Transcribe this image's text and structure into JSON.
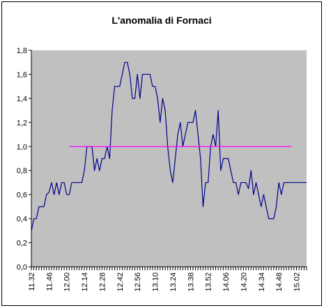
{
  "chart_data": {
    "type": "line",
    "title": "L'anomalia di Fornaci",
    "xlabel": "",
    "ylabel": "",
    "ylim": [
      0,
      1.8
    ],
    "y_ticks": [
      "0,0",
      "0,2",
      "0,4",
      "0,6",
      "0,8",
      "1,0",
      "1,2",
      "1,4",
      "1,6",
      "1,8"
    ],
    "x_tick_labels": [
      "11.32",
      "11.46",
      "12.00",
      "12.14",
      "12.28",
      "12.42",
      "12.56",
      "13.10",
      "13.24",
      "13.38",
      "13.52",
      "14.06",
      "14.20",
      "14.34",
      "14.48",
      "15.02"
    ],
    "x_min_minutes": 692,
    "x_max_minutes": 910,
    "grid": false,
    "plot_background": "#C0C0C0",
    "series": [
      {
        "color": "#00008B",
        "x": [
          "11.32",
          "11.34",
          "11.36",
          "11.38",
          "11.40",
          "11.42",
          "11.44",
          "11.46",
          "11.48",
          "11.50",
          "11.52",
          "11.54",
          "11.56",
          "11.58",
          "12.00",
          "12.02",
          "12.04",
          "12.06",
          "12.08",
          "12.10",
          "12.12",
          "12.14",
          "12.16",
          "12.18",
          "12.20",
          "12.22",
          "12.24",
          "12.26",
          "12.28",
          "12.30",
          "12.32",
          "12.34",
          "12.36",
          "12.38",
          "12.40",
          "12.42",
          "12.44",
          "12.46",
          "12.48",
          "12.50",
          "12.52",
          "12.54",
          "12.56",
          "12.58",
          "13.00",
          "13.02",
          "13.04",
          "13.06",
          "13.08",
          "13.10",
          "13.12",
          "13.14",
          "13.16",
          "13.18",
          "13.20",
          "13.22",
          "13.24",
          "13.26",
          "13.28",
          "13.30",
          "13.32",
          "13.34",
          "13.36",
          "13.38",
          "13.40",
          "13.42",
          "13.44",
          "13.46",
          "13.48",
          "13.50",
          "13.52",
          "13.54",
          "13.56",
          "13.58",
          "14.00",
          "14.02",
          "14.04",
          "14.06",
          "14.08",
          "14.10",
          "14.12",
          "14.14",
          "14.16",
          "14.18",
          "14.20",
          "14.22",
          "14.24",
          "14.26",
          "14.28",
          "14.30",
          "14.32",
          "14.34",
          "14.36",
          "14.38",
          "14.40",
          "14.42",
          "14.44",
          "14.46",
          "14.48",
          "14.50",
          "14.52",
          "14.54",
          "14.56",
          "14.58",
          "15.00",
          "15.02",
          "15.04",
          "15.06",
          "15.08",
          "15.10"
        ],
        "values": [
          0.3,
          0.4,
          0.4,
          0.5,
          0.5,
          0.5,
          0.6,
          0.62,
          0.7,
          0.6,
          0.7,
          0.6,
          0.7,
          0.7,
          0.6,
          0.6,
          0.7,
          0.7,
          0.7,
          0.7,
          0.7,
          0.8,
          1.0,
          1.0,
          1.0,
          0.8,
          0.9,
          0.8,
          0.9,
          0.9,
          1.0,
          0.9,
          1.3,
          1.5,
          1.5,
          1.5,
          1.6,
          1.7,
          1.7,
          1.6,
          1.4,
          1.4,
          1.6,
          1.4,
          1.6,
          1.6,
          1.6,
          1.6,
          1.5,
          1.5,
          1.4,
          1.2,
          1.4,
          1.3,
          1.0,
          0.8,
          0.7,
          0.9,
          1.1,
          1.2,
          1.0,
          1.1,
          1.2,
          1.2,
          1.2,
          1.3,
          1.1,
          0.9,
          0.5,
          0.7,
          0.7,
          1.0,
          1.1,
          1.0,
          1.3,
          0.8,
          0.9,
          0.9,
          0.9,
          0.8,
          0.7,
          0.7,
          0.6,
          0.7,
          0.7,
          0.7,
          0.65,
          0.8,
          0.6,
          0.7,
          0.6,
          0.5,
          0.6,
          0.5,
          0.4,
          0.4,
          0.4,
          0.5,
          0.7,
          0.6,
          0.7,
          0.7,
          0.7,
          0.7,
          0.7,
          0.7,
          0.7,
          0.7,
          0.7,
          0.7
        ]
      },
      {
        "color": "#FF00FF",
        "x": [
          "12.02",
          "14.58"
        ],
        "values": [
          1.0,
          1.0
        ]
      }
    ]
  }
}
